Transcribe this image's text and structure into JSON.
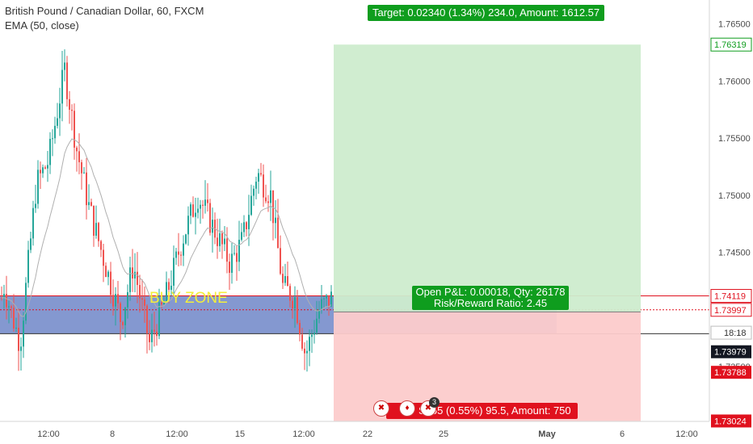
{
  "legend": {
    "symbol_line": "British Pound / Canadian Dollar, 60, FXCM",
    "indicator_line": "EMA (50, close)"
  },
  "zone_label": "BUY ZONE",
  "position": {
    "target_label": "Target: 0.02340 (1.34%) 234.0, Amount: 1612.57",
    "open_line1": "Open P&L: 0.00018, Qty: 26178",
    "open_line2": "Risk/Reward Ratio: 2.45",
    "stop_label": "955 (0.55%) 95.5, Amount: 750",
    "stop_prefix": "S",
    "flag_count": "3"
  },
  "chart_data": {
    "type": "candlestick",
    "title": "British Pound / Canadian Dollar, 60, FXCM",
    "indicator": "EMA (50, close)",
    "y_axis": {
      "ylim": [
        1.72886,
        1.76681
      ],
      "ticks": [
        "1.76500",
        "1.76000",
        "1.75500",
        "1.75000",
        "1.74500",
        "1.74000",
        "1.73500"
      ],
      "tick_values": [
        1.765,
        1.76,
        1.755,
        1.75,
        1.745,
        1.74,
        1.735
      ]
    },
    "x_axis": {
      "labels": [
        "12:00",
        "8",
        "12:00",
        "15",
        "12:00",
        "22",
        "25",
        "May",
        "6",
        "12:00"
      ],
      "label_bold": [
        false,
        false,
        false,
        false,
        false,
        false,
        false,
        true,
        false,
        false
      ]
    },
    "price_tags": [
      {
        "value": "1.76319",
        "price": 1.76319,
        "color": "#0f9d1e",
        "style": "outline"
      },
      {
        "value": "1.74119",
        "price": 1.74119,
        "color": "#e0111e",
        "style": "outline"
      },
      {
        "value": "1.73997",
        "price": 1.73997,
        "color": "#e0111e",
        "style": "outline"
      },
      {
        "value": "18:18",
        "price": 1.73797,
        "color": "#333333",
        "style": "time"
      },
      {
        "value": "1.73979",
        "price": 1.7363,
        "color": "#131722",
        "style": "filled-dark"
      },
      {
        "value": "1.73788",
        "price": 1.7345,
        "color": "#e0111e",
        "style": "filled"
      },
      {
        "value": "1.73024",
        "price": 1.73024,
        "color": "#e0111e",
        "style": "filled"
      }
    ],
    "levels": {
      "buy_zone_top": 1.74119,
      "buy_zone_bottom": 1.73788,
      "entry": 1.73979,
      "target": 1.76319,
      "stop": 1.73024,
      "current": 1.73997
    },
    "colors": {
      "up": "#26a69a",
      "down": "#ef5350",
      "buy_zone": "#6f86c8",
      "profit": "#cdeccd",
      "loss": "#fccbcb",
      "ema": "#b0b0b0"
    }
  }
}
